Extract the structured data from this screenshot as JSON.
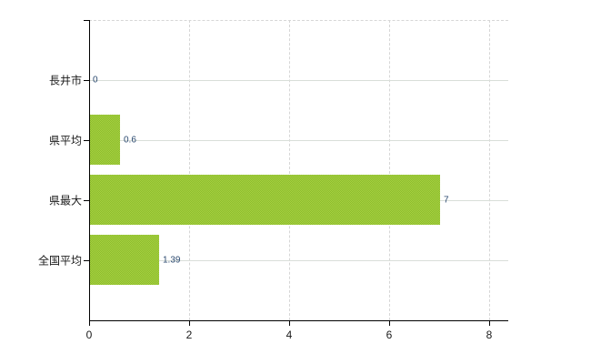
{
  "chart_data": {
    "type": "bar",
    "orientation": "horizontal",
    "title": "",
    "xlabel": "",
    "ylabel": "",
    "categories": [
      "長井市",
      "県平均",
      "県最大",
      "全国平均"
    ],
    "values": [
      0,
      0.6,
      7,
      1.39
    ],
    "value_labels": [
      "0",
      "0.6",
      "7",
      "1.39"
    ],
    "xlim": [
      0,
      8
    ],
    "xticks": [
      0,
      2,
      4,
      6,
      8
    ],
    "grid": true,
    "legend": false,
    "colors": {
      "bar": "#9dc832",
      "bar_texture_light": "#a9d243",
      "bar_texture_dark": "#8abb2b",
      "axis": "#000000",
      "horizontal_gridline": "#d9ded9",
      "dashed_gridline": "#d6d6d6",
      "category_label": "#1a1a1a",
      "tick_label": "#1a1a1a",
      "value_label": "#2c4a70",
      "background": "#ffffff"
    }
  }
}
